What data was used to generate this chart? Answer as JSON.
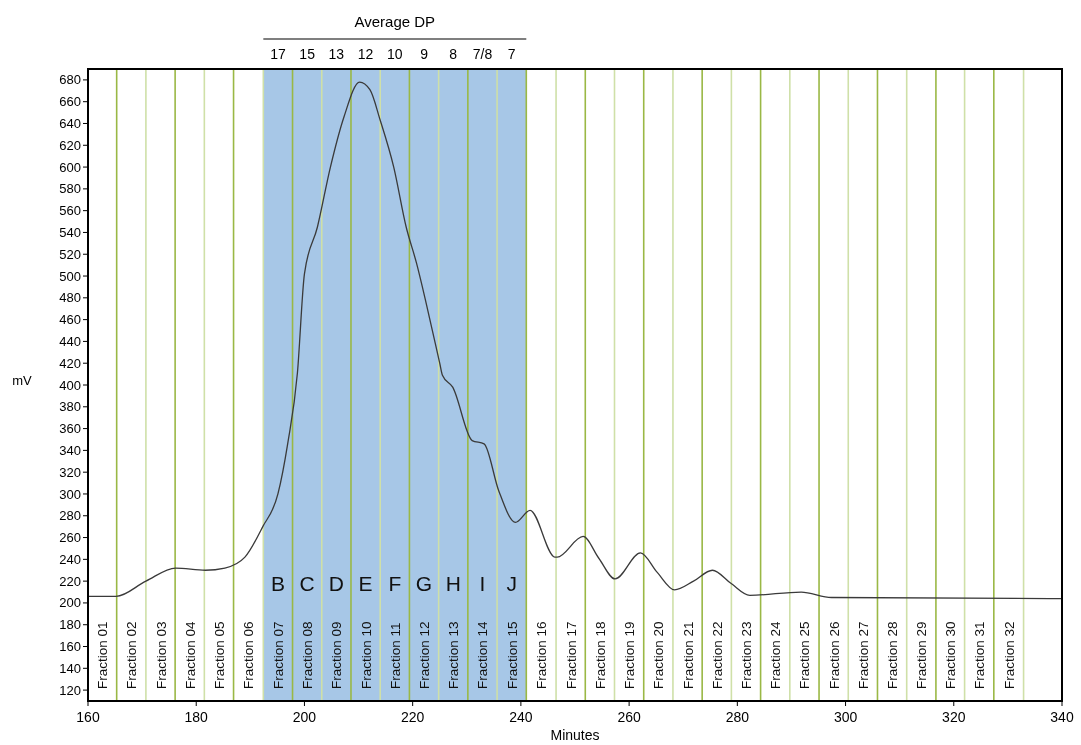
{
  "chart_data": {
    "type": "line",
    "xlabel": "Minutes",
    "ylabel": "mV",
    "x2label": "Average DP",
    "xlim": [
      160,
      340
    ],
    "xticks": [
      160,
      180,
      200,
      220,
      240,
      260,
      280,
      300,
      320,
      340
    ],
    "ylim": [
      110,
      690
    ],
    "yticks": [
      120,
      140,
      160,
      180,
      200,
      220,
      240,
      260,
      280,
      300,
      320,
      340,
      360,
      380,
      400,
      420,
      440,
      460,
      480,
      500,
      520,
      540,
      560,
      580,
      600,
      620,
      640,
      660,
      680
    ],
    "grid": false,
    "marker": "none",
    "line_style": "solid",
    "series": [
      {
        "color": "#3a3a3a",
        "x": [
          160,
          160.7,
          165.2,
          170.7,
          176.2,
          181.7,
          185.3,
          189.0,
          192.3,
          195.1,
          196.9,
          198.7,
          200,
          202.4,
          204.8,
          207.3,
          210.2,
          212.1,
          214.0,
          216.5,
          218.8,
          220.7,
          222.5,
          225.0,
          225.5,
          227.4,
          231.0,
          233.2,
          235.9,
          239.0,
          241.7,
          246.3,
          246.7,
          251.5,
          254.4,
          257.4,
          262.1,
          265.2,
          268.4,
          271.9,
          275.4,
          278.8,
          282.3,
          291.8,
          297.4,
          337.8,
          340
        ],
        "values": [
          206,
          206,
          206,
          220,
          232,
          230,
          232,
          242,
          270,
          300,
          346,
          411,
          502,
          545,
          600,
          646,
          678,
          671,
          643,
          600,
          545,
          512,
          475,
          420,
          409,
          398,
          349,
          346,
          303,
          274,
          285,
          242,
          242,
          261,
          241,
          222,
          246,
          228,
          212,
          220,
          230,
          218,
          207,
          210,
          205,
          204,
          204
        ]
      }
    ],
    "bands": [
      {
        "axis": "x",
        "from": 192.4,
        "to": 241.0,
        "color": "#a7c7e7"
      }
    ],
    "ref_lines": [
      {
        "axis": "x",
        "value": 165.3,
        "color": "#9ab845",
        "label": "Fraction 01"
      },
      {
        "axis": "x",
        "value": 170.7,
        "color": "#cfe0a8",
        "label": "Fraction 02"
      },
      {
        "axis": "x",
        "value": 176.1,
        "color": "#9ab845",
        "label": "Fraction 03"
      },
      {
        "axis": "x",
        "value": 181.5,
        "color": "#cfe0a8",
        "label": "Fraction 04"
      },
      {
        "axis": "x",
        "value": 186.9,
        "color": "#9ab845",
        "label": "Fraction 05"
      },
      {
        "axis": "x",
        "value": 192.4,
        "color": "#cfe0a8",
        "label": "Fraction 06"
      },
      {
        "axis": "x",
        "value": 197.8,
        "color": "#9ab845",
        "label": "Fraction 07"
      },
      {
        "axis": "x",
        "value": 203.2,
        "color": "#cfe0a8",
        "label": "Fraction 08"
      },
      {
        "axis": "x",
        "value": 208.6,
        "color": "#9ab845",
        "label": "Fraction 09"
      },
      {
        "axis": "x",
        "value": 214.0,
        "color": "#cfe0a8",
        "label": "Fraction 10"
      },
      {
        "axis": "x",
        "value": 219.4,
        "color": "#9ab845",
        "label": "Fraction 11"
      },
      {
        "axis": "x",
        "value": 224.8,
        "color": "#cfe0a8",
        "label": "Fraction 12"
      },
      {
        "axis": "x",
        "value": 230.2,
        "color": "#9ab845",
        "label": "Fraction 13"
      },
      {
        "axis": "x",
        "value": 235.6,
        "color": "#cfe0a8",
        "label": "Fraction 14"
      },
      {
        "axis": "x",
        "value": 241.0,
        "color": "#9ab845",
        "label": "Fraction 15"
      },
      {
        "axis": "x",
        "value": 246.5,
        "color": "#cfe0a8",
        "label": "Fraction 16"
      },
      {
        "axis": "x",
        "value": 251.9,
        "color": "#9ab845",
        "label": "Fraction 17"
      },
      {
        "axis": "x",
        "value": 257.3,
        "color": "#cfe0a8",
        "label": "Fraction 18"
      },
      {
        "axis": "x",
        "value": 262.7,
        "color": "#9ab845",
        "label": "Fraction 19"
      },
      {
        "axis": "x",
        "value": 268.1,
        "color": "#cfe0a8",
        "label": "Fraction 20"
      },
      {
        "axis": "x",
        "value": 273.5,
        "color": "#9ab845",
        "label": "Fraction 21"
      },
      {
        "axis": "x",
        "value": 278.9,
        "color": "#cfe0a8",
        "label": "Fraction 22"
      },
      {
        "axis": "x",
        "value": 284.3,
        "color": "#9ab845",
        "label": "Fraction 23"
      },
      {
        "axis": "x",
        "value": 289.7,
        "color": "#cfe0a8",
        "label": "Fraction 24"
      },
      {
        "axis": "x",
        "value": 295.1,
        "color": "#9ab845",
        "label": "Fraction 25"
      },
      {
        "axis": "x",
        "value": 300.5,
        "color": "#cfe0a8",
        "label": "Fraction 26"
      },
      {
        "axis": "x",
        "value": 305.9,
        "color": "#9ab845",
        "label": "Fraction 27"
      },
      {
        "axis": "x",
        "value": 311.3,
        "color": "#cfe0a8",
        "label": "Fraction 28"
      },
      {
        "axis": "x",
        "value": 316.7,
        "color": "#9ab845",
        "label": "Fraction 29"
      },
      {
        "axis": "x",
        "value": 322.0,
        "color": "#cfe0a8",
        "label": "Fraction 30"
      },
      {
        "axis": "x",
        "value": 327.4,
        "color": "#9ab845",
        "label": "Fraction 31"
      },
      {
        "axis": "x",
        "value": 332.9,
        "color": "#cfe0a8",
        "label": "Fraction 32"
      }
    ],
    "annotations": [
      "17",
      "15",
      "13",
      "12",
      "10",
      "9",
      "8",
      "7/8",
      "7",
      "B",
      "C",
      "D",
      "E",
      "F",
      "G",
      "H",
      "I",
      "J"
    ]
  }
}
